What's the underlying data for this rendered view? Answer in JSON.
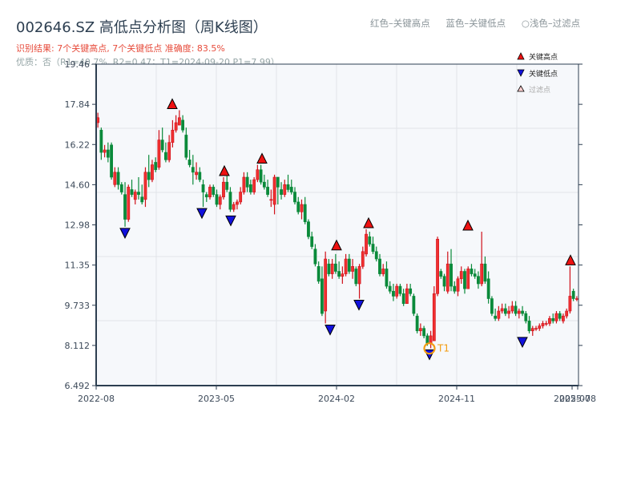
{
  "header": {
    "title": "002646.SZ 高低点分析图（周K线图）",
    "result_line": "识别结果: 7个关键高点, 7个关键低点  准确度: 83.5%",
    "quality_line": "优质：否（R1=40.7%, R2=0.47；T1=2024-09-20 P1=7.99）"
  },
  "top_legend": {
    "red": "红色–关键高点",
    "blue": "蓝色–关键低点",
    "light": "○浅色–过滤点"
  },
  "colors": {
    "up": "#d0101a",
    "down": "#0a8a3a",
    "high_marker": "#ee1111",
    "low_marker": "#1111dd",
    "t1_ring": "#f39c12",
    "axis": "#2c3e50",
    "grid": "#e1e4e8",
    "plot_bg": "#f6f8fb"
  },
  "chart_data": {
    "type": "candlestick",
    "title": "002646.SZ 高低点分析图（周K线图）",
    "xlabel": "",
    "ylabel": "",
    "ylim": [
      6.492,
      19.46
    ],
    "yticks": [
      "19.46",
      "17.84",
      "16.22",
      "14.60",
      "12.98",
      "11.35",
      "9.733",
      "8.112",
      "6.492"
    ],
    "xticks": [
      "2022-08",
      "2023-05",
      "2024-02",
      "2024-11",
      "2025-07",
      "2025-08"
    ],
    "grid": true,
    "legend": {
      "position": "upper right",
      "entries": [
        "关键高点",
        "关键低点",
        "过滤点"
      ]
    },
    "candles": [
      [
        17.1,
        17.5,
        16.9,
        17.3
      ],
      [
        16.8,
        16.9,
        15.6,
        15.9
      ],
      [
        15.9,
        16.2,
        15.7,
        16.0
      ],
      [
        16.0,
        16.3,
        15.5,
        15.7
      ],
      [
        16.2,
        16.3,
        14.8,
        14.9
      ],
      [
        14.6,
        15.3,
        14.5,
        15.1
      ],
      [
        15.1,
        15.3,
        14.4,
        14.6
      ],
      [
        14.6,
        14.7,
        14.2,
        14.3
      ],
      [
        14.2,
        14.7,
        12.9,
        13.2
      ],
      [
        13.2,
        14.6,
        13.1,
        14.5
      ],
      [
        14.4,
        14.8,
        14.1,
        14.2
      ],
      [
        14.0,
        14.4,
        13.8,
        14.3
      ],
      [
        14.3,
        14.9,
        14.0,
        14.2
      ],
      [
        14.1,
        14.6,
        13.8,
        13.9
      ],
      [
        14.0,
        15.3,
        13.7,
        15.1
      ],
      [
        15.1,
        15.8,
        14.5,
        14.8
      ],
      [
        14.8,
        15.6,
        14.7,
        15.4
      ],
      [
        15.5,
        15.7,
        15.1,
        15.2
      ],
      [
        15.3,
        16.8,
        15.2,
        16.4
      ],
      [
        16.4,
        16.9,
        15.9,
        16.0
      ],
      [
        15.9,
        16.3,
        15.5,
        15.6
      ],
      [
        15.6,
        16.6,
        15.5,
        16.3
      ],
      [
        16.3,
        17.2,
        16.1,
        16.8
      ],
      [
        16.8,
        17.4,
        16.7,
        17.1
      ],
      [
        17.0,
        17.6,
        17.0,
        17.3
      ],
      [
        17.2,
        17.4,
        16.7,
        16.8
      ],
      [
        16.6,
        16.9,
        15.6,
        15.7
      ],
      [
        15.6,
        16.0,
        15.3,
        15.4
      ],
      [
        15.3,
        15.8,
        14.6,
        15.1
      ],
      [
        15.0,
        15.5,
        14.8,
        15.1
      ],
      [
        15.1,
        15.3,
        14.7,
        14.8
      ],
      [
        14.6,
        14.8,
        13.7,
        14.3
      ],
      [
        14.2,
        14.3,
        13.9,
        14.1
      ],
      [
        14.1,
        14.6,
        14.0,
        14.5
      ],
      [
        14.5,
        14.6,
        14.1,
        14.2
      ],
      [
        14.2,
        14.4,
        13.7,
        13.8
      ],
      [
        13.8,
        14.2,
        13.6,
        14.1
      ],
      [
        14.1,
        14.9,
        14.0,
        14.7
      ],
      [
        14.7,
        15.0,
        14.3,
        14.4
      ],
      [
        14.3,
        14.5,
        13.5,
        13.6
      ],
      [
        13.6,
        13.9,
        13.5,
        13.8
      ],
      [
        13.8,
        14.0,
        13.6,
        13.9
      ],
      [
        13.9,
        14.5,
        13.8,
        14.3
      ],
      [
        14.3,
        15.1,
        14.2,
        14.9
      ],
      [
        14.9,
        15.1,
        14.3,
        14.5
      ],
      [
        14.6,
        14.8,
        14.2,
        14.3
      ],
      [
        14.3,
        14.9,
        14.2,
        14.8
      ],
      [
        14.8,
        15.4,
        14.7,
        15.2
      ],
      [
        15.2,
        15.4,
        14.6,
        14.7
      ],
      [
        14.7,
        15.0,
        14.4,
        14.5
      ],
      [
        14.5,
        14.8,
        14.1,
        14.2
      ],
      [
        14.0,
        14.4,
        13.7,
        14.0
      ],
      [
        13.8,
        15.0,
        13.4,
        14.9
      ],
      [
        14.9,
        14.9,
        13.8,
        14.5
      ],
      [
        14.4,
        14.7,
        14.0,
        14.2
      ],
      [
        14.2,
        14.8,
        14.1,
        14.6
      ],
      [
        14.6,
        15.0,
        14.3,
        14.4
      ],
      [
        14.5,
        14.8,
        14.2,
        14.3
      ],
      [
        14.3,
        14.5,
        13.8,
        13.9
      ],
      [
        13.9,
        14.1,
        13.4,
        13.5
      ],
      [
        13.5,
        14.0,
        13.2,
        13.8
      ],
      [
        13.8,
        14.1,
        13.0,
        13.1
      ],
      [
        13.1,
        13.2,
        12.4,
        12.5
      ],
      [
        12.5,
        12.7,
        12.0,
        12.1
      ],
      [
        12.0,
        12.2,
        11.3,
        11.4
      ],
      [
        11.3,
        11.5,
        10.6,
        10.7
      ],
      [
        10.8,
        11.3,
        9.3,
        9.4
      ],
      [
        9.5,
        11.9,
        9.0,
        11.6
      ],
      [
        11.4,
        11.6,
        10.9,
        11.0
      ],
      [
        11.0,
        11.6,
        10.8,
        11.4
      ],
      [
        11.4,
        11.8,
        11.0,
        11.1
      ],
      [
        11.1,
        11.5,
        10.8,
        10.9
      ],
      [
        10.9,
        11.3,
        10.6,
        11.0
      ],
      [
        11.0,
        11.8,
        10.9,
        11.6
      ],
      [
        11.6,
        11.8,
        11.0,
        11.1
      ],
      [
        11.1,
        11.6,
        10.8,
        11.3
      ],
      [
        11.2,
        11.3,
        10.5,
        10.6
      ],
      [
        10.6,
        11.4,
        10.0,
        11.3
      ],
      [
        11.3,
        12.1,
        11.2,
        11.9
      ],
      [
        11.8,
        12.8,
        11.7,
        12.6
      ],
      [
        12.5,
        12.7,
        12.1,
        12.2
      ],
      [
        12.2,
        12.5,
        11.8,
        11.9
      ],
      [
        11.9,
        12.1,
        11.5,
        11.6
      ],
      [
        11.6,
        11.8,
        10.9,
        11.0
      ],
      [
        11.0,
        11.4,
        10.9,
        11.2
      ],
      [
        11.2,
        11.5,
        10.4,
        10.5
      ],
      [
        10.5,
        10.7,
        10.2,
        10.3
      ],
      [
        10.3,
        10.6,
        9.9,
        10.1
      ],
      [
        10.1,
        10.6,
        10.0,
        10.5
      ],
      [
        10.5,
        10.6,
        10.1,
        10.2
      ],
      [
        10.2,
        10.4,
        9.7,
        9.8
      ],
      [
        9.8,
        10.6,
        9.8,
        10.4
      ],
      [
        10.4,
        10.6,
        10.1,
        10.2
      ],
      [
        10.1,
        10.2,
        9.3,
        9.4
      ],
      [
        9.3,
        9.4,
        8.6,
        8.7
      ],
      [
        8.7,
        9.0,
        8.5,
        8.8
      ],
      [
        8.8,
        8.9,
        8.4,
        8.5
      ],
      [
        8.5,
        8.6,
        8.1,
        8.2
      ],
      [
        8.2,
        8.7,
        8.0,
        8.5
      ],
      [
        8.3,
        10.5,
        8.3,
        10.2
      ],
      [
        10.2,
        12.5,
        10.1,
        12.4
      ],
      [
        11.1,
        11.2,
        10.8,
        10.9
      ],
      [
        10.9,
        11.0,
        10.3,
        10.5
      ],
      [
        10.3,
        11.9,
        10.2,
        11.4
      ],
      [
        11.4,
        12.0,
        10.3,
        10.5
      ],
      [
        10.5,
        10.7,
        10.2,
        10.3
      ],
      [
        10.3,
        10.9,
        10.1,
        10.8
      ],
      [
        10.8,
        11.3,
        10.6,
        11.1
      ],
      [
        11.1,
        11.2,
        10.2,
        10.4
      ],
      [
        10.4,
        11.3,
        10.4,
        11.2
      ],
      [
        11.2,
        11.4,
        10.9,
        11.0
      ],
      [
        11.0,
        11.2,
        10.8,
        10.9
      ],
      [
        10.9,
        11.1,
        10.4,
        10.6
      ],
      [
        10.6,
        12.7,
        10.5,
        11.4
      ],
      [
        11.4,
        11.7,
        10.6,
        10.7
      ],
      [
        10.8,
        11.1,
        9.8,
        10.0
      ],
      [
        10.0,
        10.1,
        9.3,
        9.4
      ],
      [
        9.3,
        9.6,
        9.1,
        9.2
      ],
      [
        9.2,
        9.7,
        9.1,
        9.5
      ],
      [
        9.5,
        9.8,
        9.4,
        9.6
      ],
      [
        9.6,
        9.8,
        9.3,
        9.4
      ],
      [
        9.4,
        9.7,
        9.2,
        9.5
      ],
      [
        9.5,
        9.9,
        9.4,
        9.7
      ],
      [
        9.7,
        9.9,
        9.3,
        9.4
      ],
      [
        9.4,
        9.6,
        9.2,
        9.5
      ],
      [
        9.5,
        9.7,
        9.3,
        9.4
      ],
      [
        9.4,
        9.5,
        9.0,
        9.1
      ],
      [
        9.1,
        9.3,
        8.6,
        8.7
      ],
      [
        8.7,
        8.9,
        8.5,
        8.8
      ],
      [
        8.8,
        8.9,
        8.7,
        8.8
      ],
      [
        8.8,
        9.0,
        8.7,
        8.9
      ],
      [
        8.9,
        9.1,
        8.8,
        9.0
      ],
      [
        9.0,
        9.1,
        8.9,
        9.0
      ],
      [
        9.0,
        9.3,
        8.9,
        9.2
      ],
      [
        9.2,
        9.4,
        9.0,
        9.1
      ],
      [
        9.1,
        9.5,
        9.0,
        9.4
      ],
      [
        9.4,
        9.5,
        9.1,
        9.2
      ],
      [
        9.1,
        9.4,
        9.0,
        9.3
      ],
      [
        9.3,
        9.6,
        9.2,
        9.5
      ],
      [
        9.5,
        11.3,
        9.4,
        10.1
      ],
      [
        10.3,
        10.4,
        9.9,
        10.0
      ],
      [
        10.0,
        10.1,
        9.9,
        10.0
      ]
    ],
    "key_highs": [
      {
        "date_approx": "2022-12",
        "price": 17.6
      },
      {
        "date_approx": "2023-05",
        "price": 14.9
      },
      {
        "date_approx": "2023-08",
        "price": 15.4
      },
      {
        "date_approx": "2024-02",
        "price": 11.9
      },
      {
        "date_approx": "2024-04",
        "price": 12.8
      },
      {
        "date_approx": "2024-11",
        "price": 12.7
      },
      {
        "date_approx": "2025-07",
        "price": 11.3
      }
    ],
    "key_lows": [
      {
        "date_approx": "2022-10",
        "price": 12.9
      },
      {
        "date_approx": "2023-04",
        "price": 13.7
      },
      {
        "date_approx": "2023-05",
        "price": 13.4
      },
      {
        "date_approx": "2024-01",
        "price": 9.0
      },
      {
        "date_approx": "2024-04",
        "price": 10.0
      },
      {
        "date_approx": "2024-09",
        "price": 8.0
      },
      {
        "date_approx": "2025-03",
        "price": 8.5
      }
    ],
    "annotations": [
      {
        "label": "T1",
        "date": "2024-09-20",
        "price": 7.99
      }
    ]
  }
}
